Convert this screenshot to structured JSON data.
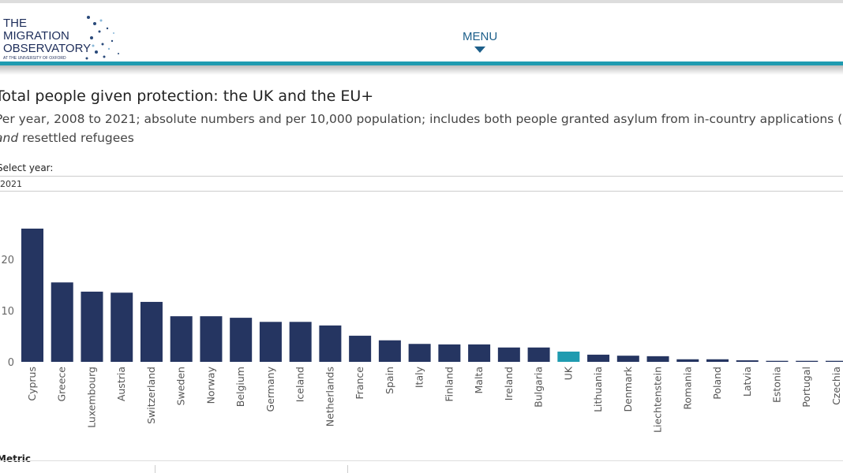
{
  "header": {
    "logo_lines": [
      "THE",
      "MIGRATION",
      "OBSERVATORY"
    ],
    "logo_sub": "AT THE UNIVERSITY OF OXFORD",
    "menu_label": "MENU"
  },
  "title": "Total people given protection: the UK and the EU+",
  "subtitle_line1": "Per year, 2008 to 2021; absolute numbers and per 10,000 population; includes both people granted asylum from in-country applications (",
  "subtitle_italic": "and",
  "subtitle_line2": " resettled refugees",
  "filter": {
    "label": "Select year:",
    "value": "2021"
  },
  "metric_label": "Metric",
  "colors": {
    "bar": "#253561",
    "highlight": "#1f9bb0"
  },
  "chart_data": {
    "type": "bar",
    "categories": [
      "Cyprus",
      "Greece",
      "Luxembourg",
      "Austria",
      "Switzerland",
      "Sweden",
      "Norway",
      "Belgium",
      "Germany",
      "Iceland",
      "Netherlands",
      "France",
      "Spain",
      "Italy",
      "Finland",
      "Malta",
      "Ireland",
      "Bulgaria",
      "UK",
      "Lithuania",
      "Denmark",
      "Liechtenstein",
      "Romania",
      "Poland",
      "Latvia",
      "Estonia",
      "Portugal",
      "Czechia"
    ],
    "values": [
      26.0,
      15.5,
      13.7,
      13.5,
      11.7,
      8.9,
      8.9,
      8.6,
      7.8,
      7.8,
      7.1,
      5.1,
      4.2,
      3.5,
      3.4,
      3.4,
      2.8,
      2.8,
      2.0,
      1.4,
      1.2,
      1.1,
      0.5,
      0.5,
      0.3,
      0.2,
      0.2,
      0.2
    ],
    "highlight": "UK",
    "yticks": [
      "0",
      "10",
      "20"
    ],
    "ylim": [
      0,
      27
    ],
    "grid": false
  }
}
